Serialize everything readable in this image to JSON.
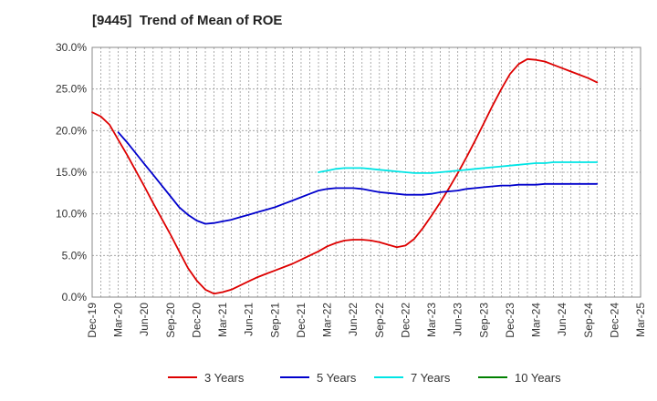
{
  "chart_data": {
    "type": "line",
    "title": "[9445]  Trend of Mean of ROE",
    "xlabel": "",
    "ylabel": "",
    "x_tick_labels": [
      "Dec-19",
      "Mar-20",
      "Jun-20",
      "Sep-20",
      "Dec-20",
      "Mar-21",
      "Jun-21",
      "Sep-21",
      "Dec-21",
      "Mar-22",
      "Jun-22",
      "Sep-22",
      "Dec-22",
      "Mar-23",
      "Jun-23",
      "Sep-23",
      "Dec-23",
      "Mar-24",
      "Jun-24",
      "Sep-24",
      "Dec-24",
      "Mar-25"
    ],
    "y_tick_labels": [
      "0.0%",
      "5.0%",
      "10.0%",
      "15.0%",
      "20.0%",
      "25.0%",
      "30.0%"
    ],
    "ylim": [
      0,
      30
    ],
    "grid": true,
    "legend_position": "bottom",
    "series": [
      {
        "name": "3 Years",
        "color": "#dd0000",
        "values": [
          22.2,
          21.7,
          20.7,
          18.9,
          17.1,
          15.2,
          13.3,
          11.3,
          9.4,
          7.5,
          5.5,
          3.5,
          2.0,
          0.9,
          0.4,
          0.6,
          0.9,
          1.4,
          1.9,
          2.4,
          2.8,
          3.2,
          3.6,
          4.0,
          4.5,
          5.0,
          5.5,
          6.1,
          6.5,
          6.8,
          6.9,
          6.9,
          6.8,
          6.6,
          6.3,
          6.0,
          6.2,
          7.0,
          8.3,
          9.8,
          11.4,
          13.1,
          14.9,
          16.8,
          18.8,
          20.9,
          23.0,
          25.0,
          26.8,
          28.0,
          28.6,
          28.5,
          28.3,
          27.9,
          27.5,
          27.1,
          26.7,
          26.3,
          25.8
        ]
      },
      {
        "name": "5 Years",
        "color": "#0000cc",
        "values": [
          null,
          null,
          null,
          19.8,
          18.6,
          17.3,
          16.0,
          14.7,
          13.4,
          12.1,
          10.8,
          9.9,
          9.2,
          8.8,
          8.9,
          9.1,
          9.3,
          9.6,
          9.9,
          10.2,
          10.5,
          10.8,
          11.2,
          11.6,
          12.0,
          12.4,
          12.8,
          13.0,
          13.1,
          13.1,
          13.1,
          13.0,
          12.8,
          12.6,
          12.5,
          12.4,
          12.3,
          12.3,
          12.3,
          12.4,
          12.6,
          12.7,
          12.8,
          13.0,
          13.1,
          13.2,
          13.3,
          13.4,
          13.4,
          13.5,
          13.5,
          13.5,
          13.6,
          13.6,
          13.6,
          13.6,
          13.6,
          13.6,
          13.6
        ]
      },
      {
        "name": "7 Years",
        "color": "#00e5e5",
        "values": [
          null,
          null,
          null,
          null,
          null,
          null,
          null,
          null,
          null,
          null,
          null,
          null,
          null,
          null,
          null,
          null,
          null,
          null,
          null,
          null,
          null,
          null,
          null,
          null,
          null,
          null,
          15.0,
          15.2,
          15.4,
          15.5,
          15.5,
          15.5,
          15.4,
          15.3,
          15.2,
          15.1,
          15.0,
          14.9,
          14.9,
          14.9,
          15.0,
          15.1,
          15.2,
          15.3,
          15.4,
          15.5,
          15.6,
          15.7,
          15.8,
          15.9,
          16.0,
          16.1,
          16.1,
          16.2,
          16.2,
          16.2,
          16.2,
          16.2,
          16.2
        ]
      },
      {
        "name": "10 Years",
        "color": "#008000",
        "values": []
      }
    ]
  }
}
